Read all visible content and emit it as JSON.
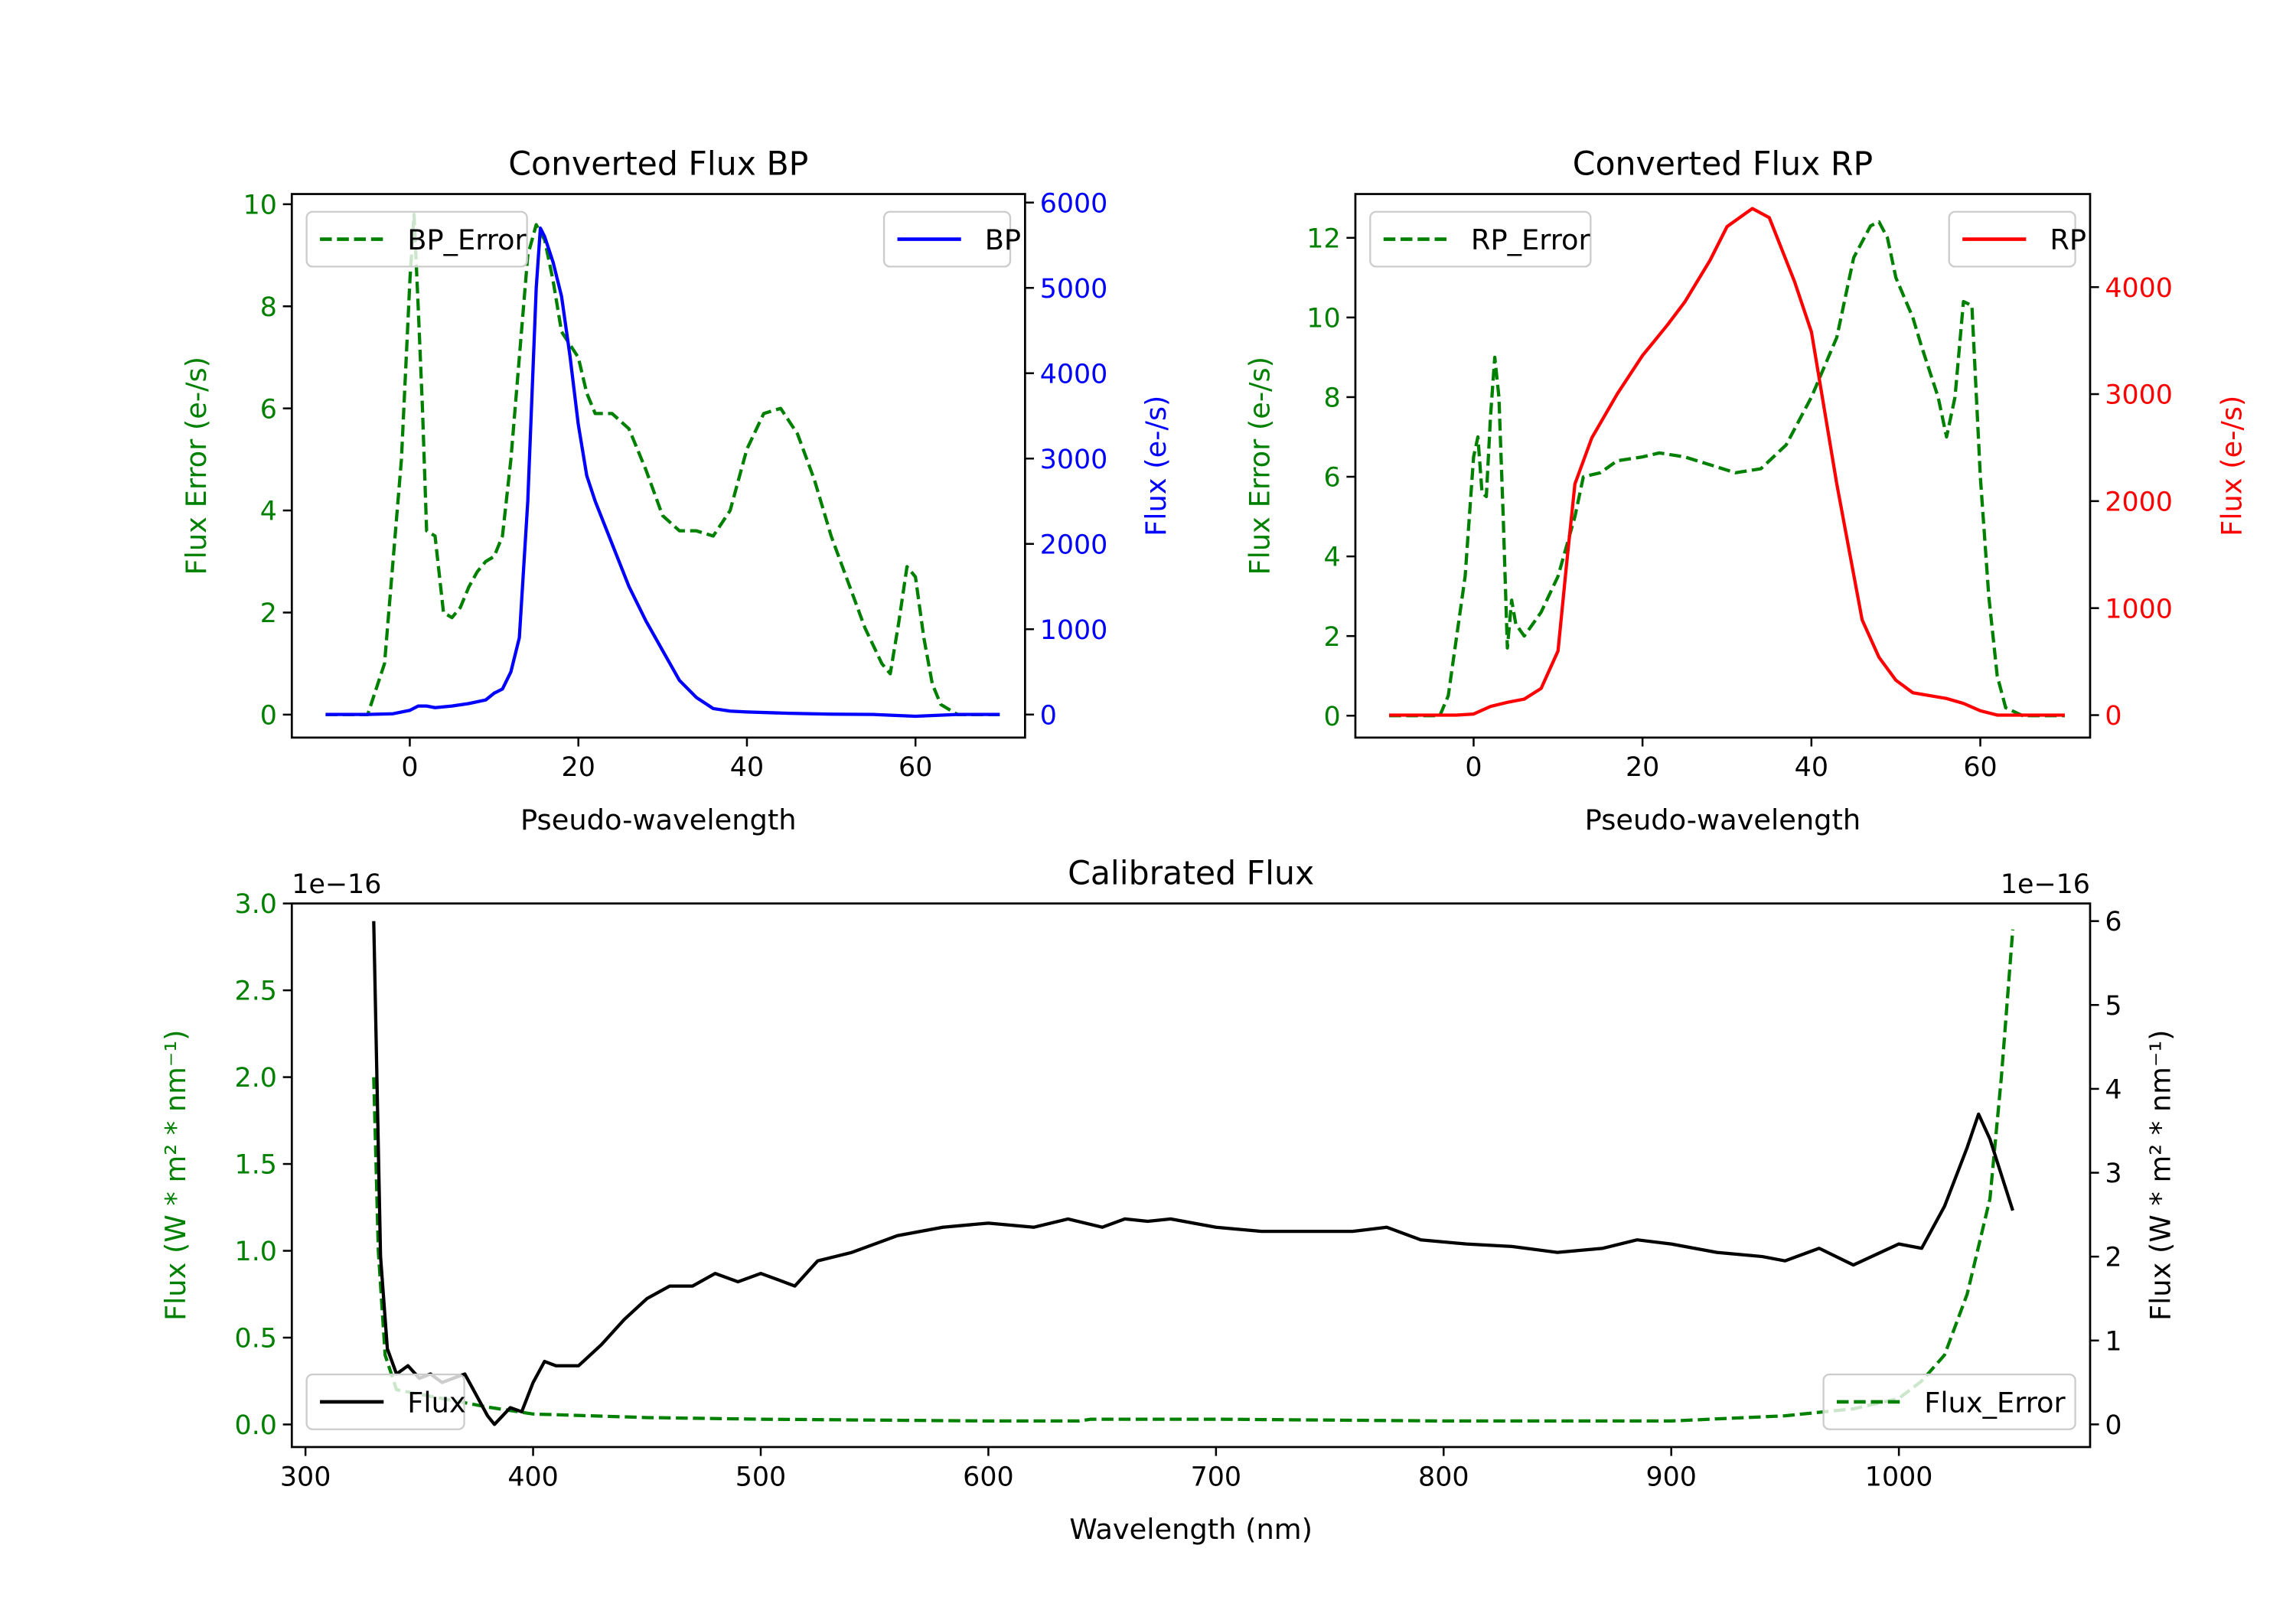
{
  "colors": {
    "green": "#008000",
    "blue": "#0000ff",
    "red": "#ff0000",
    "black": "#000000"
  },
  "chart_data": [
    {
      "type": "line",
      "title": "Converted Flux BP",
      "xlabel": "Pseudo-wavelength",
      "ylabel_left": "Flux Error (e-/s)",
      "ylabel_right": "Flux (e-/s)",
      "xlim": [
        -14,
        73
      ],
      "ylim_left": [
        -0.45,
        10.2
      ],
      "ylim_right": [
        -270,
        6100
      ],
      "xticks": [
        0,
        20,
        40,
        60
      ],
      "yticks_left": [
        0,
        2,
        4,
        6,
        8,
        10
      ],
      "yticks_right": [
        0,
        1000,
        2000,
        3000,
        4000,
        5000,
        6000
      ],
      "left_color": "#008000",
      "right_color": "#0000ff",
      "legends": [
        {
          "label": "BP_Error",
          "series": 0,
          "placement": "upper-left"
        },
        {
          "label": "BP",
          "series": 1,
          "placement": "upper-right"
        }
      ],
      "series": [
        {
          "name": "BP_Error",
          "axis": "left",
          "style": "dashed",
          "color": "#008000",
          "x": [
            -10,
            -5,
            -3,
            -1,
            0,
            0.5,
            1,
            1.5,
            2,
            3,
            4,
            5,
            6,
            7,
            8,
            9,
            10,
            11,
            12,
            13,
            14,
            15,
            16,
            17,
            18,
            20,
            21,
            22,
            24,
            26,
            28,
            30,
            32,
            34,
            36,
            38,
            40,
            42,
            44,
            46,
            48,
            50,
            52,
            54,
            56,
            57,
            58,
            59,
            60,
            61,
            62,
            63,
            65,
            70
          ],
          "y": [
            0,
            0,
            1,
            5,
            8.5,
            9.8,
            8,
            6,
            3.6,
            3.5,
            2,
            1.9,
            2.1,
            2.5,
            2.8,
            3,
            3.1,
            3.5,
            5,
            7,
            9,
            9.6,
            9.3,
            8.5,
            7.5,
            7,
            6.3,
            5.9,
            5.9,
            5.6,
            4.8,
            3.9,
            3.6,
            3.6,
            3.5,
            4,
            5.2,
            5.9,
            6,
            5.5,
            4.6,
            3.5,
            2.6,
            1.7,
            1,
            0.8,
            1.8,
            2.9,
            2.7,
            1.5,
            0.6,
            0.2,
            0,
            0
          ]
        },
        {
          "name": "BP",
          "axis": "right",
          "style": "solid",
          "color": "#0000ff",
          "x": [
            -10,
            -5,
            -2,
            0,
            1,
            2,
            3,
            5,
            7,
            9,
            10,
            11,
            12,
            13,
            14,
            15,
            15.5,
            16,
            17,
            18,
            19,
            20,
            21,
            22,
            24,
            26,
            28,
            30,
            32,
            34,
            36,
            38,
            40,
            45,
            50,
            55,
            60,
            65,
            70
          ],
          "y": [
            0,
            0,
            10,
            50,
            100,
            100,
            80,
            100,
            130,
            170,
            250,
            300,
            500,
            900,
            2500,
            5000,
            5700,
            5600,
            5300,
            4900,
            4200,
            3400,
            2800,
            2500,
            2000,
            1500,
            1100,
            750,
            400,
            200,
            70,
            40,
            30,
            15,
            5,
            0,
            -20,
            0,
            0
          ]
        }
      ]
    },
    {
      "type": "line",
      "title": "Converted Flux RP",
      "xlabel": "Pseudo-wavelength",
      "ylabel_left": "Flux Error (e-/s)",
      "ylabel_right": "Flux (e-/s)",
      "xlim": [
        -14,
        73
      ],
      "ylim_left": [
        -0.55,
        13.1
      ],
      "ylim_right": [
        -210,
        4870
      ],
      "xticks": [
        0,
        20,
        40,
        60
      ],
      "yticks_left": [
        0,
        2,
        4,
        6,
        8,
        10,
        12
      ],
      "yticks_right": [
        0,
        1000,
        2000,
        3000,
        4000
      ],
      "left_color": "#008000",
      "right_color": "#ff0000",
      "legends": [
        {
          "label": "RP_Error",
          "series": 0,
          "placement": "upper-left"
        },
        {
          "label": "RP",
          "series": 1,
          "placement": "upper-right"
        }
      ],
      "series": [
        {
          "name": "RP_Error",
          "axis": "left",
          "style": "dashed",
          "color": "#008000",
          "x": [
            -10,
            -4,
            -3,
            -1,
            0,
            0.5,
            1,
            1.5,
            2,
            2.5,
            3,
            3.5,
            4,
            4.5,
            5,
            6,
            7,
            8,
            10,
            12,
            13,
            15,
            17,
            20,
            22,
            25,
            28,
            31,
            34,
            37,
            40,
            43,
            45,
            47,
            48,
            49,
            50,
            52,
            53,
            55,
            56,
            57,
            58,
            59,
            60,
            61,
            62,
            63,
            65,
            70
          ],
          "y": [
            0,
            0,
            0.5,
            3.5,
            6.5,
            7,
            5.6,
            5.5,
            7.5,
            9,
            8,
            5,
            1.7,
            2.9,
            2.3,
            2,
            2.3,
            2.6,
            3.5,
            5,
            6,
            6.1,
            6.4,
            6.5,
            6.6,
            6.5,
            6.3,
            6.1,
            6.2,
            6.8,
            8,
            9.5,
            11.5,
            12.3,
            12.4,
            12,
            11,
            10,
            9.3,
            8,
            7,
            8,
            10.4,
            10.3,
            6,
            3,
            1,
            0.2,
            0,
            0
          ]
        },
        {
          "name": "RP",
          "axis": "right",
          "style": "solid",
          "color": "#ff0000",
          "x": [
            -10,
            -2,
            0,
            2,
            4,
            6,
            8,
            10,
            11,
            12,
            14,
            17,
            20,
            23,
            25,
            28,
            30,
            33,
            35,
            36,
            38,
            40,
            43,
            46,
            48,
            50,
            52,
            56,
            58,
            60,
            62,
            70
          ],
          "y": [
            0,
            0,
            10,
            80,
            120,
            150,
            250,
            600,
            1400,
            2160,
            2590,
            3000,
            3360,
            3650,
            3860,
            4250,
            4565,
            4735,
            4650,
            4450,
            4050,
            3580,
            2160,
            890,
            540,
            325,
            210,
            155,
            110,
            40,
            0,
            0
          ]
        }
      ]
    },
    {
      "type": "line",
      "title": "Calibrated Flux",
      "xlabel": "Wavelength (nm)",
      "ylabel_left": "Flux (W * m² * nm⁻¹)",
      "ylabel_right": "Flux (W * m² * nm⁻¹)",
      "offset_left": "1e−16",
      "offset_right": "1e−16",
      "xlim": [
        294,
        1084
      ],
      "ylim_left": [
        -0.13,
        3.0
      ],
      "ylim_right": [
        -0.27,
        6.21
      ],
      "xticks": [
        300,
        400,
        500,
        600,
        700,
        800,
        900,
        1000
      ],
      "yticks_left": [
        0.0,
        0.5,
        1.0,
        1.5,
        2.0,
        2.5,
        3.0
      ],
      "yticks_left_labels": [
        "0.0",
        "0.5",
        "1.0",
        "1.5",
        "2.0",
        "2.5",
        "3.0"
      ],
      "yticks_right": [
        0,
        1,
        2,
        3,
        4,
        5,
        6
      ],
      "left_color": "#008000",
      "right_color": "#000000",
      "legends": [
        {
          "label": "Flux",
          "series": 1,
          "placement": "lower-left"
        },
        {
          "label": "Flux_Error",
          "series": 0,
          "placement": "lower-right"
        }
      ],
      "series": [
        {
          "name": "Flux_Error",
          "axis": "left",
          "style": "dashed",
          "color": "#008000",
          "x": [
            330,
            332,
            335,
            340,
            360,
            380,
            400,
            450,
            500,
            600,
            640,
            645,
            700,
            800,
            900,
            950,
            980,
            1000,
            1010,
            1020,
            1030,
            1040,
            1045,
            1050
          ],
          "y": [
            2.0,
            1.0,
            0.4,
            0.2,
            0.15,
            0.1,
            0.06,
            0.04,
            0.03,
            0.02,
            0.02,
            0.03,
            0.03,
            0.02,
            0.02,
            0.05,
            0.09,
            0.15,
            0.25,
            0.4,
            0.75,
            1.3,
            2.0,
            2.85
          ]
        },
        {
          "name": "Flux",
          "axis": "right",
          "style": "solid",
          "color": "#000000",
          "x": [
            330,
            333,
            336,
            340,
            345,
            350,
            355,
            360,
            370,
            380,
            383,
            390,
            395,
            400,
            405,
            410,
            420,
            430,
            440,
            450,
            460,
            470,
            480,
            490,
            500,
            510,
            515,
            525,
            540,
            560,
            580,
            600,
            620,
            635,
            650,
            660,
            670,
            680,
            700,
            720,
            740,
            760,
            775,
            790,
            810,
            830,
            850,
            870,
            885,
            900,
            920,
            940,
            950,
            965,
            980,
            1000,
            1010,
            1020,
            1030,
            1035,
            1040,
            1050
          ],
          "y": [
            6.0,
            2.0,
            0.9,
            0.6,
            0.7,
            0.55,
            0.6,
            0.5,
            0.6,
            0.1,
            0.0,
            0.2,
            0.15,
            0.5,
            0.75,
            0.7,
            0.7,
            0.95,
            1.25,
            1.5,
            1.65,
            1.65,
            1.8,
            1.7,
            1.8,
            1.7,
            1.65,
            1.95,
            2.05,
            2.25,
            2.35,
            2.4,
            2.35,
            2.45,
            2.35,
            2.45,
            2.42,
            2.45,
            2.35,
            2.3,
            2.3,
            2.3,
            2.35,
            2.2,
            2.15,
            2.12,
            2.05,
            2.1,
            2.2,
            2.15,
            2.05,
            2.0,
            1.95,
            2.1,
            1.9,
            2.15,
            2.1,
            2.6,
            3.3,
            3.7,
            3.4,
            2.55
          ]
        }
      ]
    }
  ]
}
